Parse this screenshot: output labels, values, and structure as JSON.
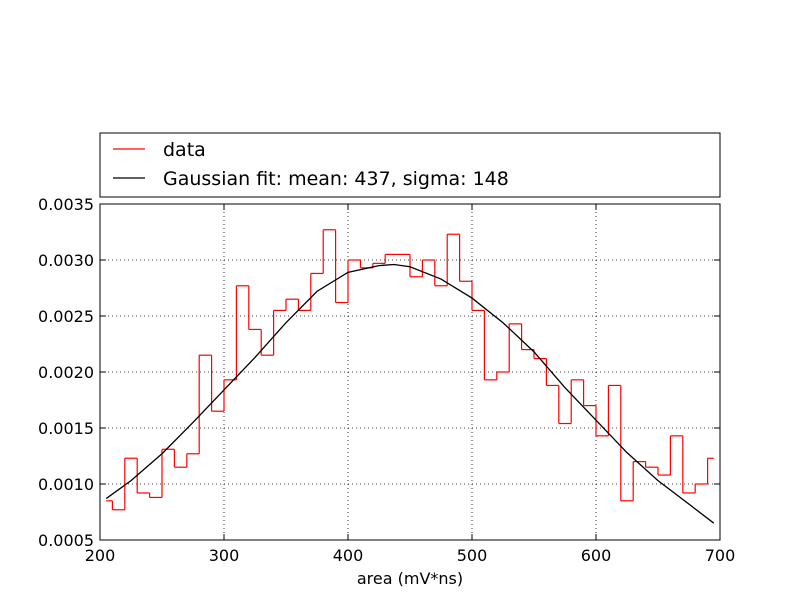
{
  "chart_data": {
    "type": "line",
    "title": "",
    "xlabel": "area (mV*ns)",
    "ylabel": "",
    "xlim": [
      200,
      700
    ],
    "ylim": [
      0.0005,
      0.0035
    ],
    "x_ticks": [
      200,
      300,
      400,
      500,
      600,
      700
    ],
    "x_tick_labels": [
      "200",
      "300",
      "400",
      "500",
      "600",
      "700"
    ],
    "y_ticks": [
      0.0005,
      0.001,
      0.0015,
      0.002,
      0.0025,
      0.003,
      0.0035
    ],
    "y_tick_labels": [
      "0.0005",
      "0.0010",
      "0.0015",
      "0.0020",
      "0.0025",
      "0.0030",
      "0.0035"
    ],
    "grid": true,
    "legend_position": "above plot",
    "series": [
      {
        "name": "data",
        "style": "step",
        "color": "#ff0000",
        "bin_edges": [
          205,
          210,
          220,
          230,
          240,
          250,
          260,
          270,
          280,
          290,
          300,
          310,
          320,
          330,
          340,
          350,
          360,
          370,
          380,
          390,
          400,
          410,
          420,
          430,
          440,
          450,
          460,
          470,
          480,
          490,
          500,
          510,
          520,
          530,
          540,
          550,
          560,
          570,
          580,
          590,
          600,
          610,
          620,
          630,
          640,
          650,
          660,
          670,
          680,
          690,
          695
        ],
        "values": [
          0.00085,
          0.00077,
          0.00123,
          0.00092,
          0.00088,
          0.00131,
          0.00115,
          0.00127,
          0.00215,
          0.00165,
          0.00193,
          0.00277,
          0.00238,
          0.00215,
          0.00255,
          0.00265,
          0.00255,
          0.00288,
          0.00327,
          0.00262,
          0.003,
          0.00293,
          0.00297,
          0.00305,
          0.00305,
          0.00285,
          0.003,
          0.00277,
          0.00323,
          0.00281,
          0.00255,
          0.00193,
          0.002,
          0.00243,
          0.0022,
          0.00212,
          0.00188,
          0.00154,
          0.00193,
          0.0017,
          0.00143,
          0.00188,
          0.00085,
          0.0012,
          0.00115,
          0.00108,
          0.00143,
          0.00092,
          0.001,
          0.00123
        ]
      },
      {
        "name": "Gaussian fit: mean: 437, sigma: 148",
        "style": "line",
        "color": "#000000",
        "mean": 437,
        "sigma": 148,
        "x": [
          205,
          225,
          250,
          275,
          300,
          325,
          350,
          375,
          400,
          425,
          437,
          450,
          475,
          500,
          525,
          550,
          575,
          600,
          625,
          650,
          675,
          695
        ],
        "y": [
          0.00087,
          0.00103,
          0.00127,
          0.00155,
          0.00184,
          0.00213,
          0.00244,
          0.00272,
          0.00289,
          0.00295,
          0.00296,
          0.00294,
          0.00283,
          0.00266,
          0.00244,
          0.00218,
          0.00186,
          0.00157,
          0.00128,
          0.00103,
          0.00082,
          0.00065
        ]
      }
    ]
  }
}
